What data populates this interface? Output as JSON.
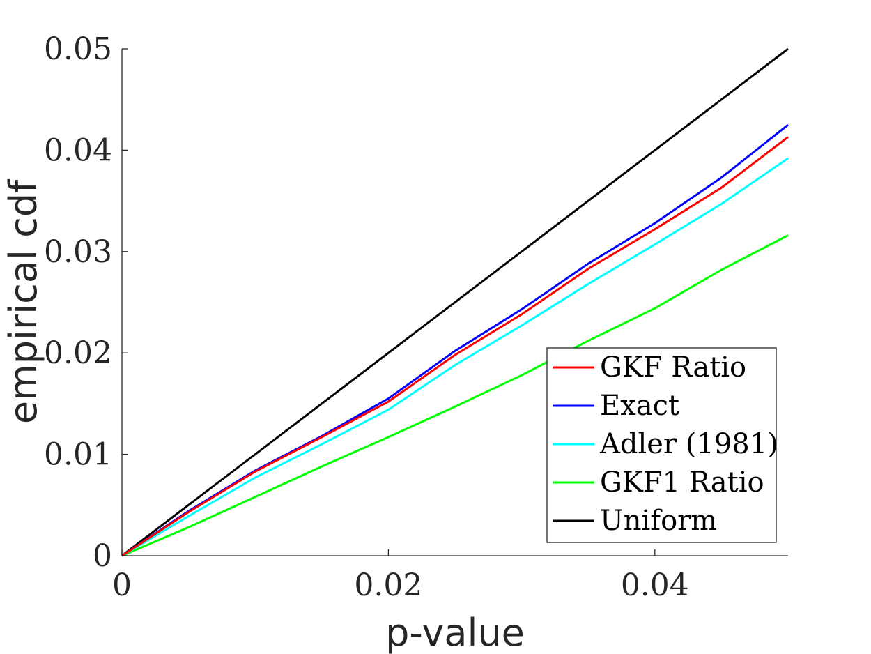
{
  "chart_data": {
    "type": "line",
    "title": "",
    "xlabel": "p-value",
    "ylabel": "empirical cdf",
    "xlim": [
      0,
      0.05
    ],
    "ylim": [
      0,
      0.05
    ],
    "xticks": [
      0,
      0.02,
      0.04
    ],
    "xtick_labels": [
      "0",
      "0.02",
      "0.04"
    ],
    "yticks": [
      0,
      0.01,
      0.02,
      0.03,
      0.04,
      0.05
    ],
    "ytick_labels": [
      "0",
      "0.01",
      "0.02",
      "0.03",
      "0.04",
      "0.05"
    ],
    "grid": false,
    "legend": {
      "placement": "bottom-right",
      "box": true
    },
    "series": [
      {
        "name": "GKF Ratio",
        "color": "#ff0000",
        "x": [
          0,
          0.005,
          0.01,
          0.015,
          0.02,
          0.025,
          0.03,
          0.035,
          0.04,
          0.045,
          0.05
        ],
        "y": [
          0,
          0.0043,
          0.0083,
          0.0117,
          0.0152,
          0.0198,
          0.0238,
          0.0283,
          0.0322,
          0.0363,
          0.0413
        ]
      },
      {
        "name": "Exact",
        "color": "#0000ff",
        "x": [
          0,
          0.005,
          0.01,
          0.015,
          0.02,
          0.025,
          0.03,
          0.035,
          0.04,
          0.045,
          0.05
        ],
        "y": [
          0,
          0.0044,
          0.0084,
          0.0118,
          0.0155,
          0.0202,
          0.0243,
          0.0288,
          0.0328,
          0.0373,
          0.0425
        ]
      },
      {
        "name": "Adler (1981)",
        "color": "#00ffff",
        "x": [
          0,
          0.005,
          0.01,
          0.015,
          0.02,
          0.025,
          0.03,
          0.035,
          0.04,
          0.045,
          0.05
        ],
        "y": [
          0,
          0.0039,
          0.0077,
          0.011,
          0.0144,
          0.0188,
          0.0227,
          0.0268,
          0.0307,
          0.0347,
          0.0392
        ]
      },
      {
        "name": "GKF1 Ratio",
        "color": "#00ff00",
        "x": [
          0,
          0.005,
          0.01,
          0.015,
          0.02,
          0.025,
          0.03,
          0.035,
          0.04,
          0.045,
          0.05
        ],
        "y": [
          0,
          0.0028,
          0.0058,
          0.0088,
          0.0117,
          0.0147,
          0.0178,
          0.0212,
          0.0244,
          0.0282,
          0.0316
        ]
      },
      {
        "name": "Uniform",
        "color": "#000000",
        "x": [
          0,
          0.05
        ],
        "y": [
          0,
          0.05
        ]
      }
    ]
  }
}
